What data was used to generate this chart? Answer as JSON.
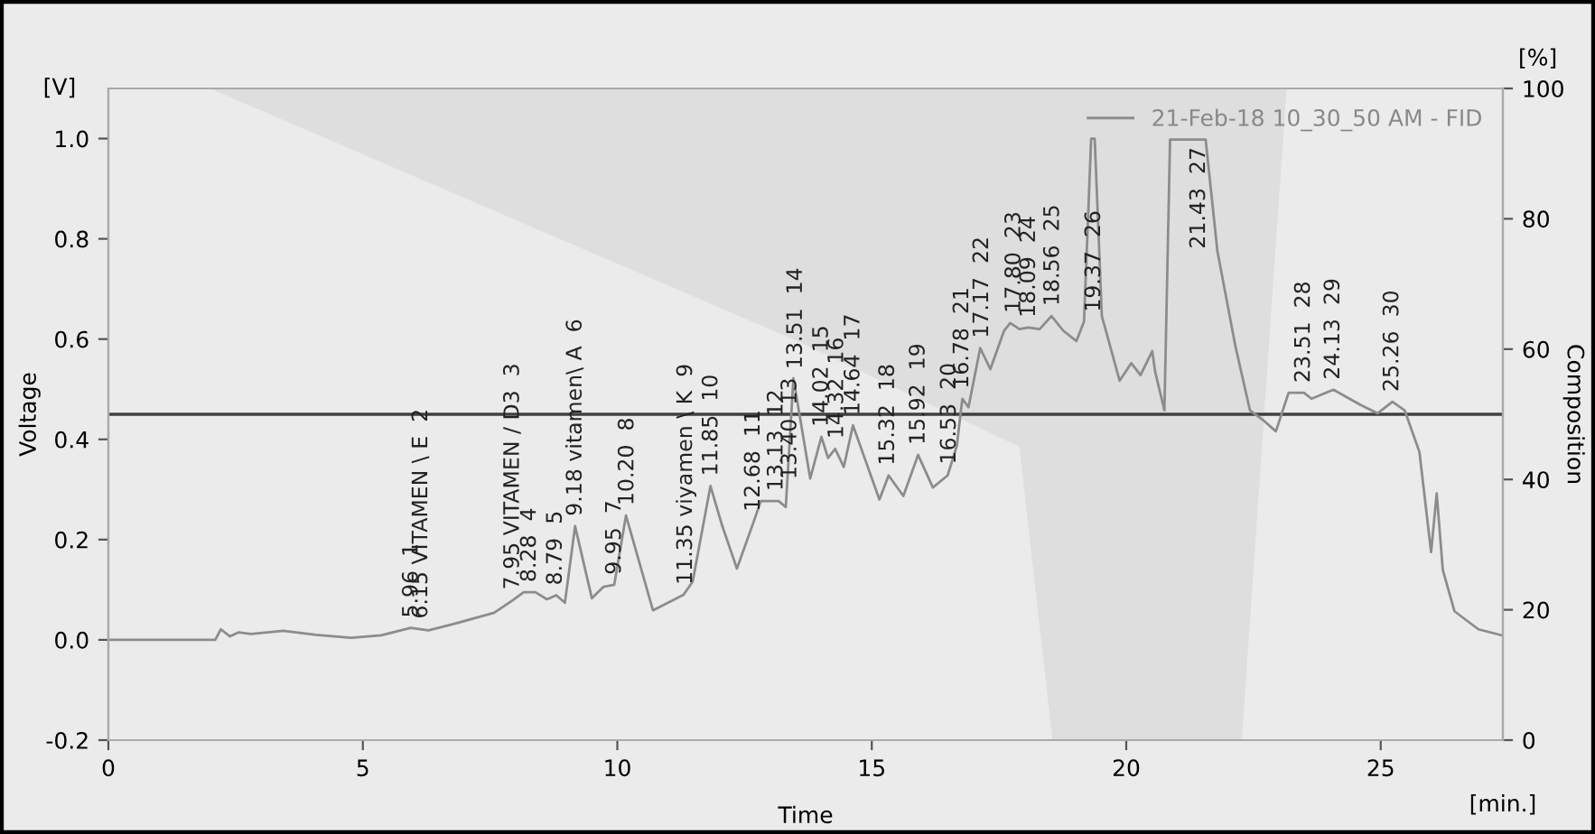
{
  "chart_data": {
    "type": "line",
    "xlabel": "Time",
    "ylabel": "Voltage",
    "y2label": "Composition",
    "xlim": [
      0,
      27.4
    ],
    "xticks": [
      0,
      5,
      10,
      15,
      20,
      25
    ],
    "ylim": [
      -0.2,
      1.1
    ],
    "yticks": [
      -0.2,
      {
        "value": 0,
        "label": "0.0"
      },
      0.2,
      0.4,
      0.6,
      0.8,
      {
        "value": 1,
        "label": "1.0"
      }
    ],
    "y2lim": [
      0,
      100
    ],
    "y2ticks": [
      0,
      20,
      40,
      60,
      80,
      100
    ],
    "grid": false,
    "legend": "top right",
    "marker": "none",
    "line_style": "solid",
    "series": [
      {
        "name": null,
        "type": "area",
        "axis": "y2",
        "color": "#ebebeb",
        "x": [
          0,
          2,
          13.6,
          17.9,
          18.55,
          22.27,
          23.15,
          27.4
        ],
        "values": [
          100,
          100,
          61,
          45,
          0,
          0,
          100,
          100
        ]
      },
      {
        "name": "21-Feb-18 10_30_50 AM - FID",
        "color": "#8c8c8c",
        "x": [
          0,
          2.1,
          2.21,
          2.39,
          2.56,
          2.8,
          3.44,
          4.08,
          4.77,
          5.36,
          5.94,
          6.29,
          6.76,
          7.58,
          7.93,
          8.16,
          8.39,
          8.62,
          8.8,
          8.97,
          9.17,
          9.5,
          9.73,
          9.94,
          10.17,
          10.7,
          11.3,
          11.48,
          11.83,
          12.06,
          12.35,
          12.68,
          12.82,
          13.17,
          13.31,
          13.46,
          13.79,
          14.01,
          14.14,
          14.28,
          14.45,
          14.63,
          15.15,
          15.33,
          15.62,
          15.91,
          16.2,
          16.49,
          16.67,
          16.78,
          16.9,
          17.13,
          17.33,
          17.6,
          17.72,
          17.9,
          18.07,
          18.3,
          18.53,
          18.76,
          19.02,
          19.17,
          19.31,
          19.38,
          19.52,
          19.87,
          20.1,
          20.28,
          20.51,
          20.57,
          20.75,
          20.86,
          21.56,
          21.79,
          22.14,
          22.43,
          22.67,
          22.94,
          23.19,
          23.49,
          23.64,
          24.07,
          24.6,
          24.94,
          25.23,
          25.47,
          25.76,
          25.99,
          26.1,
          26.22,
          26.45,
          26.92,
          27.39
        ],
        "values": [
          0,
          0,
          0.021,
          0.007,
          0.015,
          0.012,
          0.018,
          0.01,
          0.004,
          0.009,
          0.024,
          0.019,
          0.031,
          0.054,
          0.078,
          0.095,
          0.095,
          0.081,
          0.089,
          0.074,
          0.227,
          0.083,
          0.106,
          0.11,
          0.248,
          0.059,
          0.09,
          0.116,
          0.307,
          0.228,
          0.142,
          0.236,
          0.277,
          0.277,
          0.265,
          0.522,
          0.322,
          0.405,
          0.363,
          0.381,
          0.345,
          0.428,
          0.28,
          0.328,
          0.287,
          0.369,
          0.304,
          0.328,
          0.387,
          0.481,
          0.464,
          0.582,
          0.54,
          0.617,
          0.632,
          0.62,
          0.623,
          0.62,
          0.646,
          0.617,
          0.596,
          0.635,
          1.0,
          1.0,
          0.646,
          0.517,
          0.552,
          0.528,
          0.576,
          0.534,
          0.458,
          0.998,
          0.998,
          0.776,
          0.588,
          0.458,
          0.44,
          0.416,
          0.493,
          0.493,
          0.481,
          0.499,
          0.469,
          0.452,
          0.475,
          0.458,
          0.375,
          0.175,
          0.292,
          0.139,
          0.057,
          0.021,
          0.009
        ]
      }
    ],
    "ref_lines": [
      {
        "axis": "y2",
        "value": 50,
        "color": "#404040",
        "line_style": "solid"
      }
    ],
    "annotations": [
      "[V]",
      "[%]",
      "[min.]",
      {
        "text": "5.96  1",
        "x": 5.96,
        "y": 0.024
      },
      {
        "text": "6.15 VITAMEN \\ E  2",
        "x": 6.15,
        "y": 0.022
      },
      {
        "text": "7.95 VITAMEN / D3  3",
        "x": 7.95,
        "y": 0.08
      },
      {
        "text": "8.28  4",
        "x": 8.28,
        "y": 0.095
      },
      {
        "text": "8.79  5",
        "x": 8.79,
        "y": 0.089
      },
      {
        "text": "9.18 vitamen\\ A  6",
        "x": 9.18,
        "y": 0.227
      },
      {
        "text": "9.95  7",
        "x": 9.95,
        "y": 0.11
      },
      {
        "text": "10.20  8",
        "x": 10.2,
        "y": 0.248
      },
      {
        "text": "11.35 viyamen \\ K  9",
        "x": 11.35,
        "y": 0.09
      },
      {
        "text": "11.85  10",
        "x": 11.85,
        "y": 0.307
      },
      {
        "text": "12.68  11",
        "x": 12.68,
        "y": 0.236
      },
      {
        "text": "13.13  12",
        "x": 13.13,
        "y": 0.277
      },
      {
        "text": "13.40  13",
        "x": 13.4,
        "y": 0.3
      },
      {
        "text": "13.51  14",
        "x": 13.51,
        "y": 0.52
      },
      {
        "text": "14.02  15",
        "x": 14.02,
        "y": 0.405
      },
      {
        "text": "14.32  16",
        "x": 14.32,
        "y": 0.381
      },
      {
        "text": "14.64  17",
        "x": 14.64,
        "y": 0.428
      },
      {
        "text": "15.32  18",
        "x": 15.32,
        "y": 0.328
      },
      {
        "text": "15.92  19",
        "x": 15.92,
        "y": 0.369
      },
      {
        "text": "16.53  20",
        "x": 16.53,
        "y": 0.33
      },
      {
        "text": "16.78  21",
        "x": 16.78,
        "y": 0.481
      },
      {
        "text": "17.17  22",
        "x": 17.17,
        "y": 0.582
      },
      {
        "text": "17.80  23",
        "x": 17.8,
        "y": 0.632
      },
      {
        "text": "18.09  24",
        "x": 18.09,
        "y": 0.623
      },
      {
        "text": "18.56  25",
        "x": 18.56,
        "y": 0.646
      },
      {
        "text": "19.37  26",
        "x": 19.37,
        "y": 0.634
      },
      {
        "text": "21.43  27",
        "x": 21.43,
        "y": 0.998
      },
      {
        "text": "23.51  28",
        "x": 23.49,
        "y": 0.493
      },
      {
        "text": "24.13  29",
        "x": 24.07,
        "y": 0.499
      },
      {
        "text": "25.26  30",
        "x": 25.23,
        "y": 0.475
      }
    ]
  }
}
